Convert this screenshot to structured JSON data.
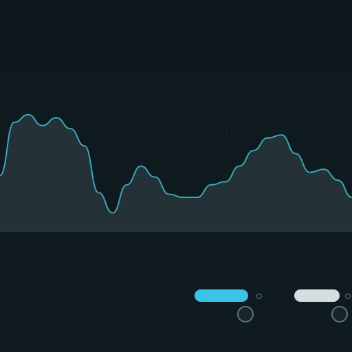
{
  "header": {
    "left_lines": [
      "",
      "",
      "",
      ""
    ],
    "center_lines": [
      "",
      "",
      "",
      ""
    ]
  },
  "colors": {
    "accent": "#3bc4e6",
    "trend_down": "#d0403b",
    "line": "#3aa7bd",
    "fill": "#243238"
  },
  "chart_data": {
    "type": "area",
    "title": "",
    "xlabel": "",
    "ylabel": "",
    "x": [
      0,
      1,
      2,
      3,
      4,
      5,
      6,
      7,
      8,
      9,
      10,
      11,
      12,
      13,
      14,
      15,
      16,
      17,
      18,
      19,
      20,
      21,
      22,
      23,
      24,
      25
    ],
    "values": [
      36,
      70,
      75,
      68,
      73,
      66,
      55,
      25,
      12,
      30,
      42,
      35,
      24,
      22,
      22,
      30,
      32,
      42,
      52,
      60,
      62,
      50,
      38,
      40,
      33,
      22
    ],
    "ylim": [
      0,
      100
    ],
    "series": [
      {
        "values": [
          36,
          70,
          75,
          68,
          73,
          66,
          55,
          25,
          12,
          30,
          42,
          35,
          24,
          22,
          22,
          30,
          32,
          42,
          52,
          60,
          62,
          50,
          38,
          40,
          33,
          22
        ]
      }
    ],
    "x_tick_labels": [
      "",
      "",
      "",
      "",
      "",
      "",
      "",
      ""
    ],
    "x_group_labels": [
      "",
      "",
      "",
      "",
      "",
      "",
      ""
    ],
    "grid": true
  },
  "controls": {
    "left_labels": [
      "",
      "",
      ""
    ],
    "middle_labels": [
      "",
      ""
    ],
    "right_labels": [
      "",
      ""
    ],
    "primary_button": "",
    "secondary_button": ""
  }
}
